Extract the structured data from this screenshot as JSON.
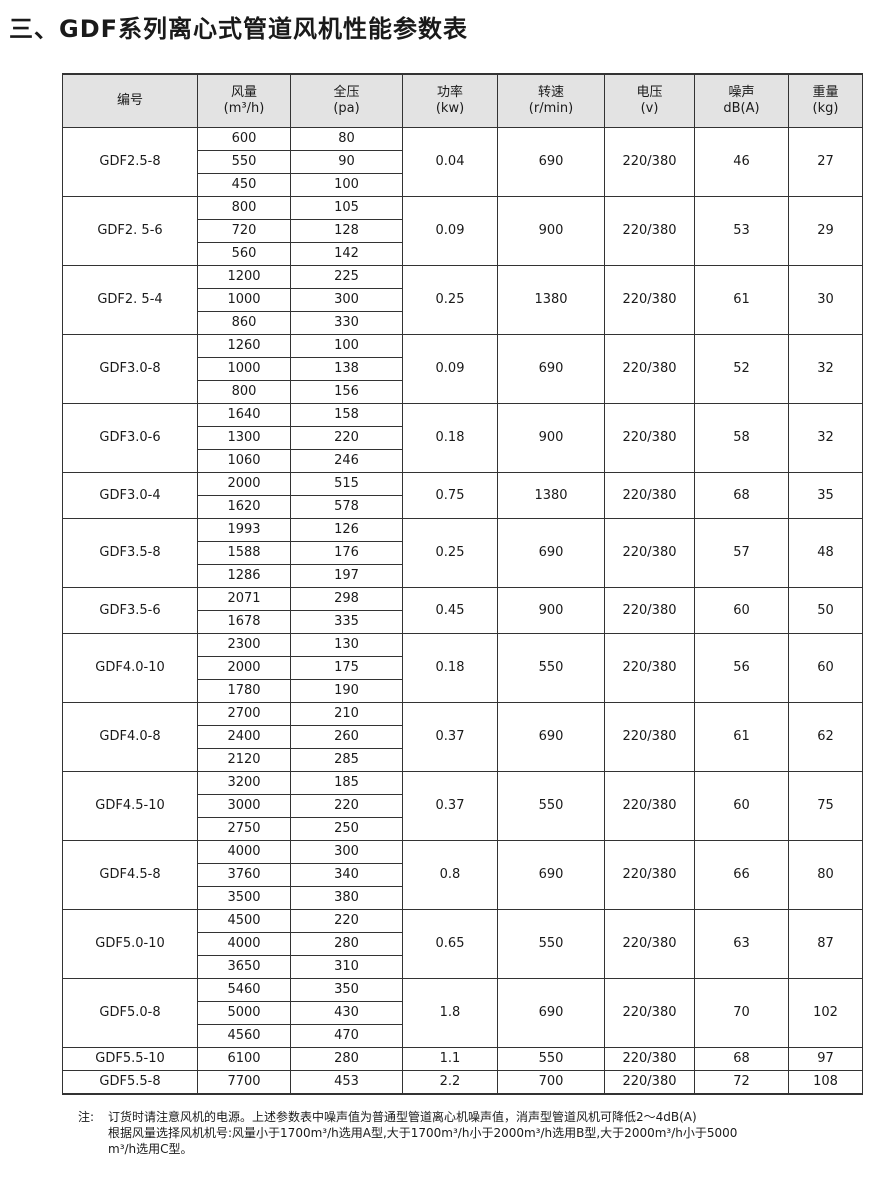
{
  "title": "三、GDF系列离心式管道风机性能参数表",
  "headers": [
    [
      "编号",
      ""
    ],
    [
      "风量",
      "(m³/h)"
    ],
    [
      "全压",
      "(pa)"
    ],
    [
      "功率",
      "(kw)"
    ],
    [
      "转速",
      "(r/min)"
    ],
    [
      "电压",
      "(v)"
    ],
    [
      "噪声",
      "dB(A)"
    ],
    [
      "重量",
      "(kg)"
    ]
  ],
  "groups": [
    {
      "model": "GDF2.5-8",
      "flow": [
        "600",
        "550",
        "450"
      ],
      "pressure": [
        "80",
        "90",
        "100"
      ],
      "power": "0.04",
      "speed": "690",
      "voltage": "220/380",
      "noise": "46",
      "weight": "27"
    },
    {
      "model": "GDF2. 5-6",
      "flow": [
        "800",
        "720",
        "560"
      ],
      "pressure": [
        "105",
        "128",
        "142"
      ],
      "power": "0.09",
      "speed": "900",
      "voltage": "220/380",
      "noise": "53",
      "weight": "29"
    },
    {
      "model": "GDF2. 5-4",
      "flow": [
        "1200",
        "1000",
        "860"
      ],
      "pressure": [
        "225",
        "300",
        "330"
      ],
      "power": "0.25",
      "speed": "1380",
      "voltage": "220/380",
      "noise": "61",
      "weight": "30"
    },
    {
      "model": "GDF3.0-8",
      "flow": [
        "1260",
        "1000",
        "800"
      ],
      "pressure": [
        "100",
        "138",
        "156"
      ],
      "power": "0.09",
      "speed": "690",
      "voltage": "220/380",
      "noise": "52",
      "weight": "32"
    },
    {
      "model": "GDF3.0-6",
      "flow": [
        "1640",
        "1300",
        "1060"
      ],
      "pressure": [
        "158",
        "220",
        "246"
      ],
      "power": "0.18",
      "speed": "900",
      "voltage": "220/380",
      "noise": "58",
      "weight": "32"
    },
    {
      "model": "GDF3.0-4",
      "flow": [
        "2000",
        "1620"
      ],
      "pressure": [
        "515",
        "578"
      ],
      "power": "0.75",
      "speed": "1380",
      "voltage": "220/380",
      "noise": "68",
      "weight": "35"
    },
    {
      "model": "GDF3.5-8",
      "flow": [
        "1993",
        "1588",
        "1286"
      ],
      "pressure": [
        "126",
        "176",
        "197"
      ],
      "power": "0.25",
      "speed": "690",
      "voltage": "220/380",
      "noise": "57",
      "weight": "48"
    },
    {
      "model": "GDF3.5-6",
      "flow": [
        "2071",
        "1678"
      ],
      "pressure": [
        "298",
        "335"
      ],
      "power": "0.45",
      "speed": "900",
      "voltage": "220/380",
      "noise": "60",
      "weight": "50"
    },
    {
      "model": "GDF4.0-10",
      "flow": [
        "2300",
        "2000",
        "1780"
      ],
      "pressure": [
        "130",
        "175",
        "190"
      ],
      "power": "0.18",
      "speed": "550",
      "voltage": "220/380",
      "noise": "56",
      "weight": "60"
    },
    {
      "model": "GDF4.0-8",
      "flow": [
        "2700",
        "2400",
        "2120"
      ],
      "pressure": [
        "210",
        "260",
        "285"
      ],
      "power": "0.37",
      "speed": "690",
      "voltage": "220/380",
      "noise": "61",
      "weight": "62"
    },
    {
      "model": "GDF4.5-10",
      "flow": [
        "3200",
        "3000",
        "2750"
      ],
      "pressure": [
        "185",
        "220",
        "250"
      ],
      "power": "0.37",
      "speed": "550",
      "voltage": "220/380",
      "noise": "60",
      "weight": "75"
    },
    {
      "model": "GDF4.5-8",
      "flow": [
        "4000",
        "3760",
        "3500"
      ],
      "pressure": [
        "300",
        "340",
        "380"
      ],
      "power": "0.8",
      "speed": "690",
      "voltage": "220/380",
      "noise": "66",
      "weight": "80"
    },
    {
      "model": "GDF5.0-10",
      "flow": [
        "4500",
        "4000",
        "3650"
      ],
      "pressure": [
        "220",
        "280",
        "310"
      ],
      "power": "0.65",
      "speed": "550",
      "voltage": "220/380",
      "noise": "63",
      "weight": "87"
    },
    {
      "model": "GDF5.0-8",
      "flow": [
        "5460",
        "5000",
        "4560"
      ],
      "pressure": [
        "350",
        "430",
        "470"
      ],
      "power": "1.8",
      "speed": "690",
      "voltage": "220/380",
      "noise": "70",
      "weight": "102"
    },
    {
      "model": "GDF5.5-10",
      "flow": [
        "6100"
      ],
      "pressure": [
        "280"
      ],
      "power": "1.1",
      "speed": "550",
      "voltage": "220/380",
      "noise": "68",
      "weight": "97"
    },
    {
      "model": "GDF5.5-8",
      "flow": [
        "7700"
      ],
      "pressure": [
        "453"
      ],
      "power": "2.2",
      "speed": "700",
      "voltage": "220/380",
      "noise": "72",
      "weight": "108"
    }
  ],
  "notes": {
    "label": "注:",
    "lines": [
      "订货时请注意风机的电源。上述参数表中噪声值为普通型管道离心机噪声值，消声型管道风机可降低2～4dB(A)",
      "根据风量选择风机机号:风量小于1700m³/h选用A型,大于1700m³/h小于2000m³/h选用B型,大于2000m³/h小于5000",
      "m³/h选用C型。"
    ]
  }
}
